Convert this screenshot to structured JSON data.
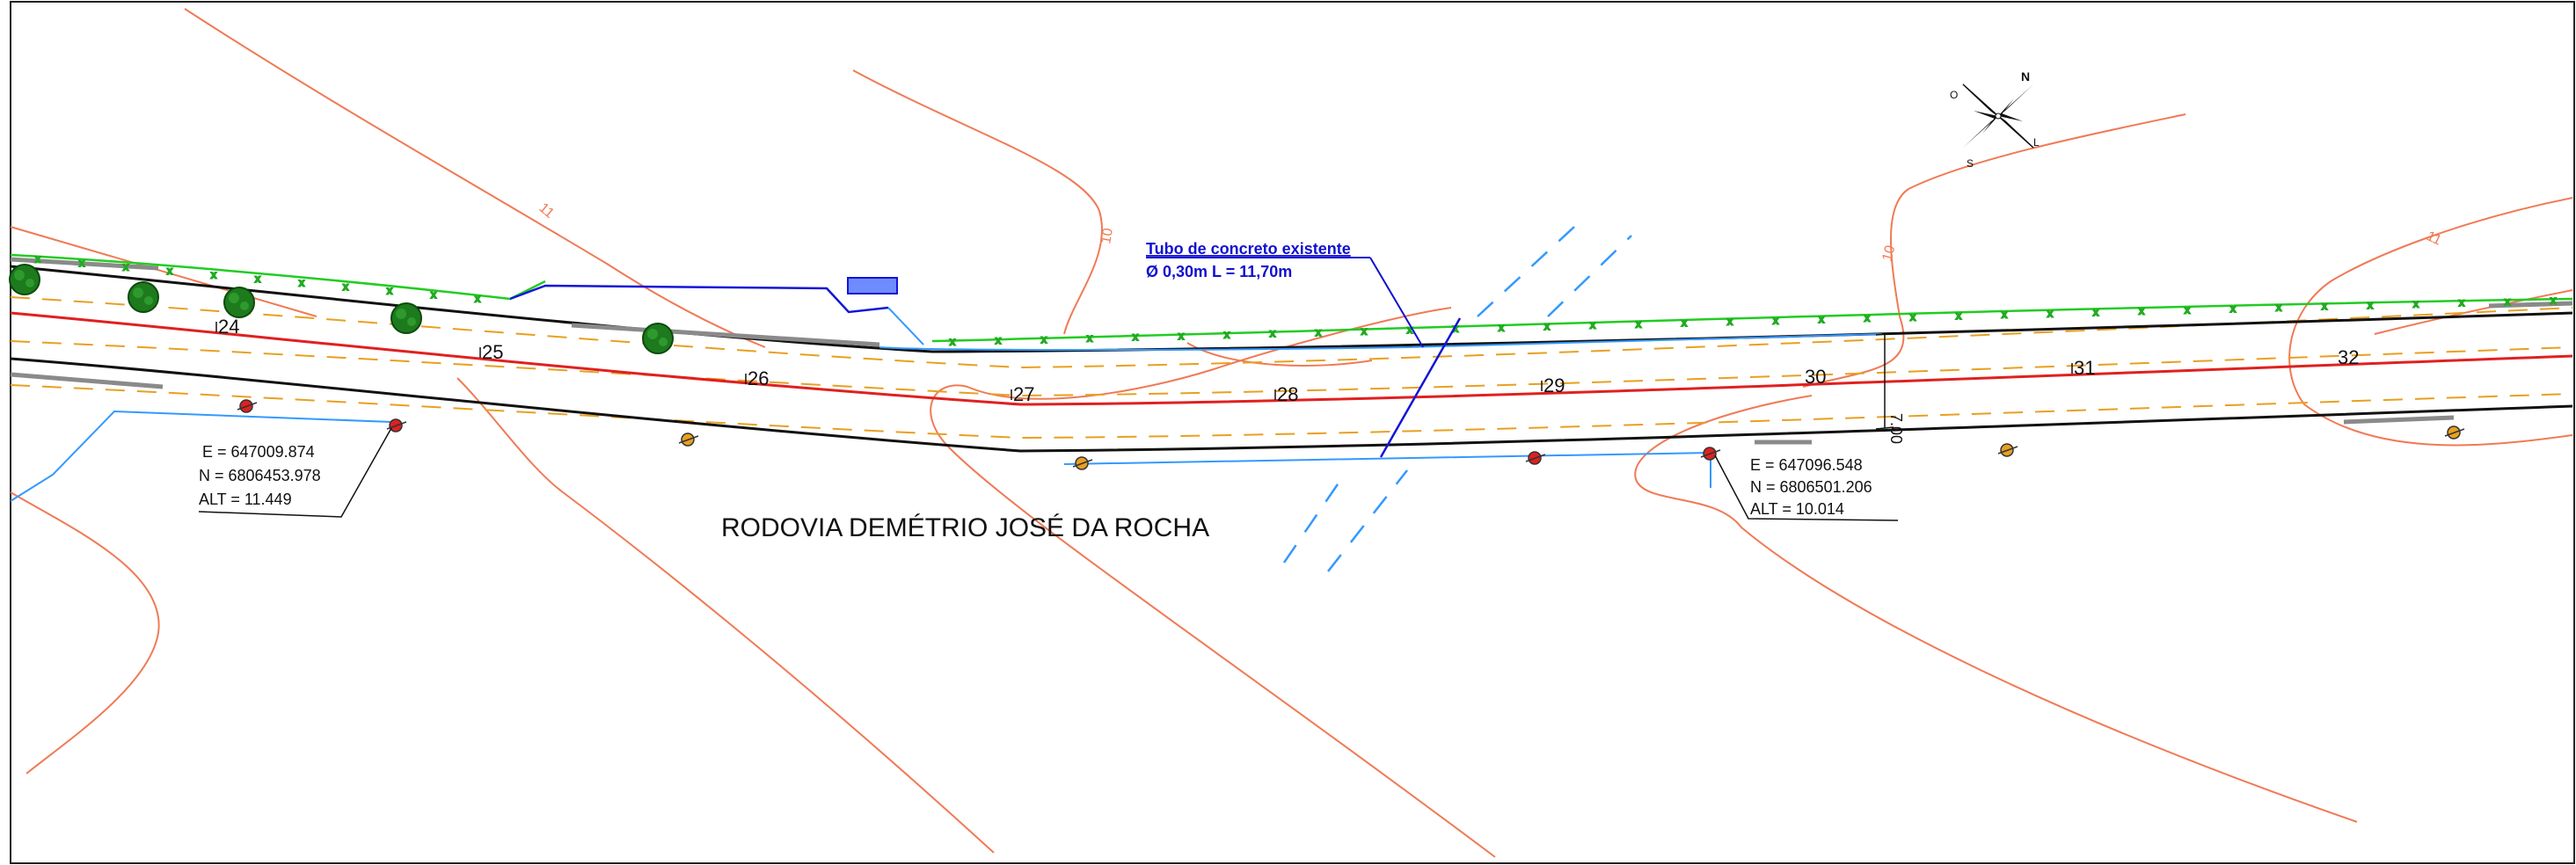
{
  "road": {
    "name": "RODOVIA DEMÉTRIO JOSÉ DA ROCHA",
    "stations": [
      "24",
      "25",
      "26",
      "27",
      "28",
      "29",
      "30",
      "31",
      "32"
    ],
    "width_dimension": "7.00"
  },
  "pipe_annotation": {
    "title": "Tubo de concreto existente",
    "spec": "Ø 0,30m  L = 11,70m"
  },
  "survey_points": [
    {
      "e": "E = 647009.874",
      "n": "N = 6806453.978",
      "alt": "ALT = 11.449"
    },
    {
      "e": "E = 647096.548",
      "n": "N = 6806501.206",
      "alt": "ALT = 10.014"
    }
  ],
  "contour_labels": [
    "11",
    "10",
    "10",
    "11"
  ],
  "north_arrow": {
    "icon": "compass-rose-icon",
    "letters": {
      "north": "N",
      "south": "S",
      "east": "L",
      "west": "O"
    }
  },
  "colors": {
    "contour": "#f07a55",
    "fence": "#22cc22",
    "road_edge": "#111111",
    "centerline": "#e02020",
    "lane_dash": "#e8a020",
    "drainage": "#3399ff",
    "pipe": "#1414d8",
    "tree": "#1d7a1d"
  }
}
